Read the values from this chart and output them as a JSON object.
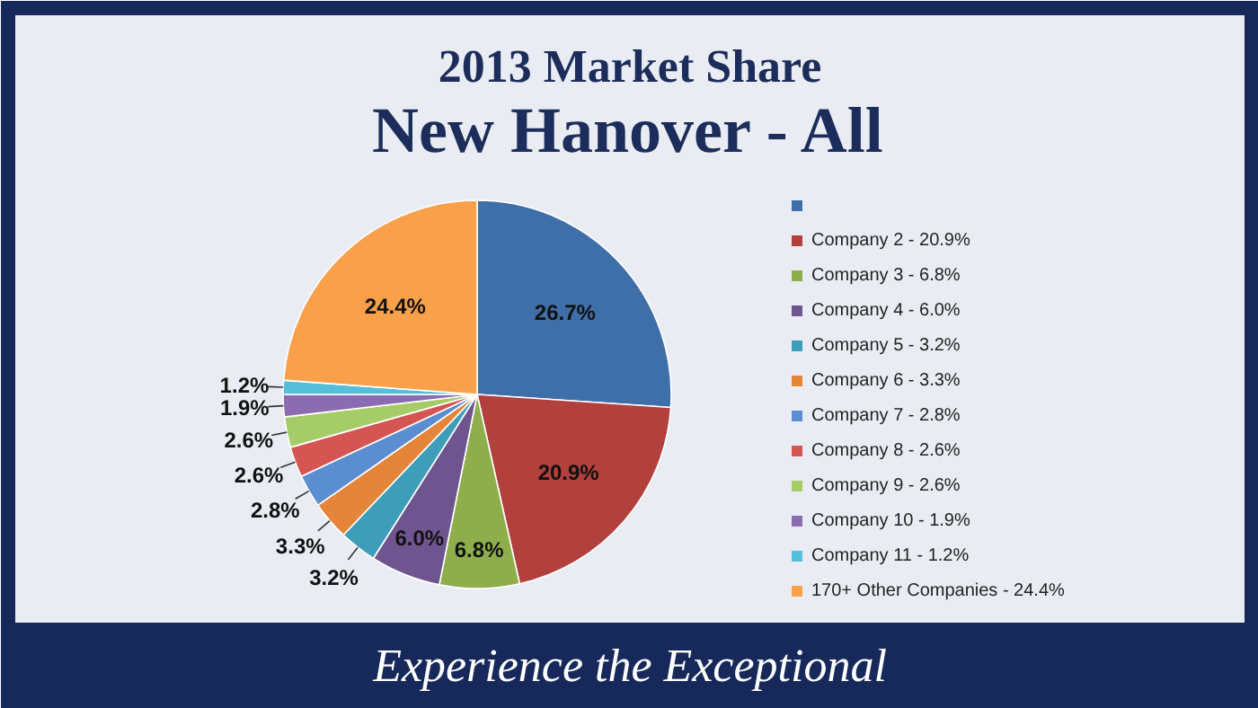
{
  "chart_data": {
    "type": "pie",
    "title": "2013 Market Share",
    "subtitle": "New Hanover - All",
    "categories": [
      null,
      "Company 2 - 20.9%",
      "Company 3 - 6.8%",
      "Company 4 - 6.0%",
      "Company 5 - 3.2%",
      "Company 6 - 3.3%",
      "Company 7 - 2.8%",
      "Company 8 - 2.6%",
      "Company 9 - 2.6%",
      "Company 10 - 1.9%",
      "Company 11 - 1.2%",
      "170+ Other Companies - 24.4%"
    ],
    "values": [
      26.7,
      20.9,
      6.8,
      6.0,
      3.2,
      3.3,
      2.8,
      2.6,
      2.6,
      1.9,
      1.2,
      24.4
    ],
    "value_labels": [
      "26.7%",
      "20.9%",
      "6.8%",
      "6.0%",
      "3.2%",
      "3.3%",
      "2.8%",
      "2.6%",
      "2.6%",
      "1.9%",
      "1.2%",
      "24.4%"
    ],
    "colors": [
      "#3f6fa8",
      "#b2403c",
      "#8eae4c",
      "#6f5590",
      "#3e9db8",
      "#e5853a",
      "#5a8ed0",
      "#d45552",
      "#a6cc68",
      "#8b6cb0",
      "#55bfdb",
      "#f9a04a"
    ],
    "legend": "right",
    "annotations": [
      "Experience the Exceptional"
    ]
  }
}
